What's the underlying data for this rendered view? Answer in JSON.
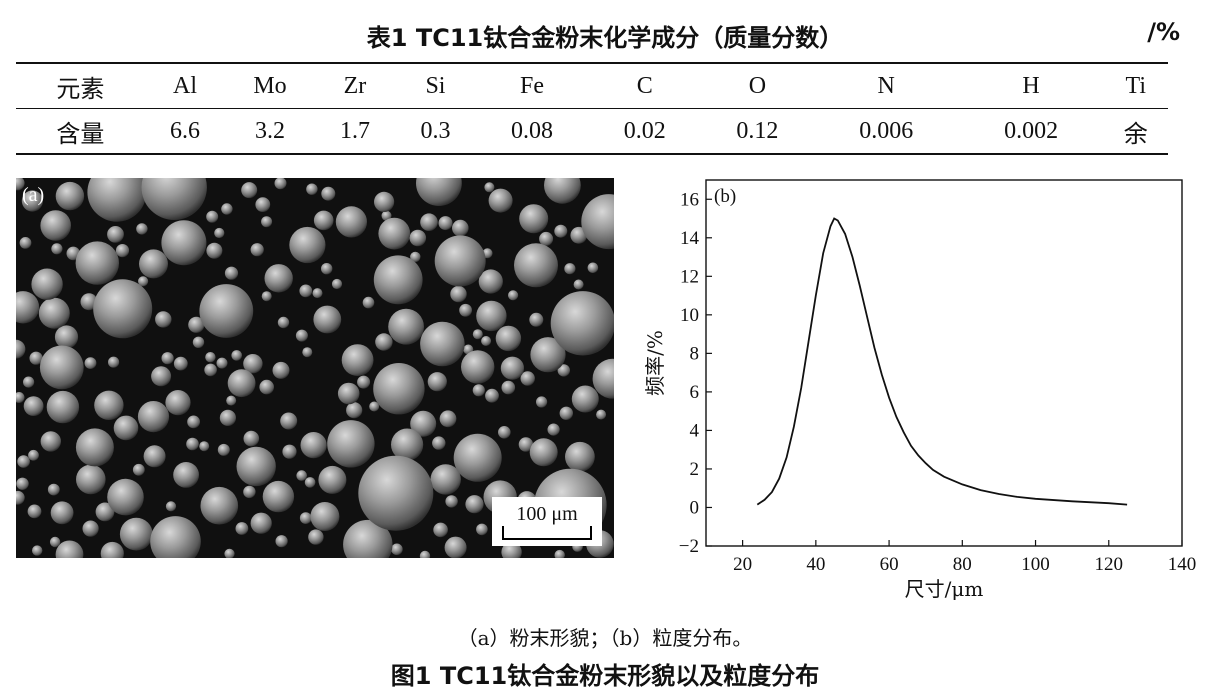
{
  "table": {
    "caption": "表1   TC11钛合金粉末化学成分（质量分数）",
    "unit": "/%",
    "headers": [
      "元素",
      "Al",
      "Mo",
      "Zr",
      "Si",
      "Fe",
      "C",
      "O",
      "N",
      "H",
      "Ti"
    ],
    "row": [
      "含量",
      "6.6",
      "3.2",
      "1.7",
      "0.3",
      "0.08",
      "0.02",
      "0.12",
      "0.006",
      "0.002",
      "余"
    ]
  },
  "figure_a": {
    "label": "(a)",
    "scale_bar": "100 μm"
  },
  "chart_data": {
    "type": "line",
    "panel_label": "(b)",
    "xlabel": "尺寸/μm",
    "ylabel": "频率/%",
    "xlim": [
      10,
      140
    ],
    "ylim": [
      -2,
      17
    ],
    "xticks": [
      20,
      40,
      60,
      80,
      100,
      120,
      140
    ],
    "yticks": [
      -2,
      0,
      2,
      4,
      6,
      8,
      10,
      12,
      14,
      16
    ],
    "x": [
      24,
      26,
      28,
      30,
      32,
      34,
      36,
      38,
      40,
      42,
      44,
      45,
      46,
      48,
      50,
      52,
      54,
      56,
      58,
      60,
      62,
      64,
      66,
      68,
      70,
      72,
      75,
      80,
      85,
      90,
      95,
      100,
      110,
      120,
      125
    ],
    "y": [
      0.15,
      0.4,
      0.8,
      1.5,
      2.6,
      4.2,
      6.2,
      8.6,
      11.0,
      13.2,
      14.6,
      15.0,
      14.9,
      14.2,
      13.0,
      11.5,
      9.9,
      8.3,
      6.9,
      5.7,
      4.7,
      3.9,
      3.2,
      2.7,
      2.3,
      1.95,
      1.6,
      1.2,
      0.9,
      0.7,
      0.55,
      0.45,
      0.32,
      0.22,
      0.15
    ]
  },
  "captions": {
    "sub": "（a）粉末形貌；（b）粒度分布。",
    "figure": "图1   TC11钛合金粉末形貌以及粒度分布"
  }
}
